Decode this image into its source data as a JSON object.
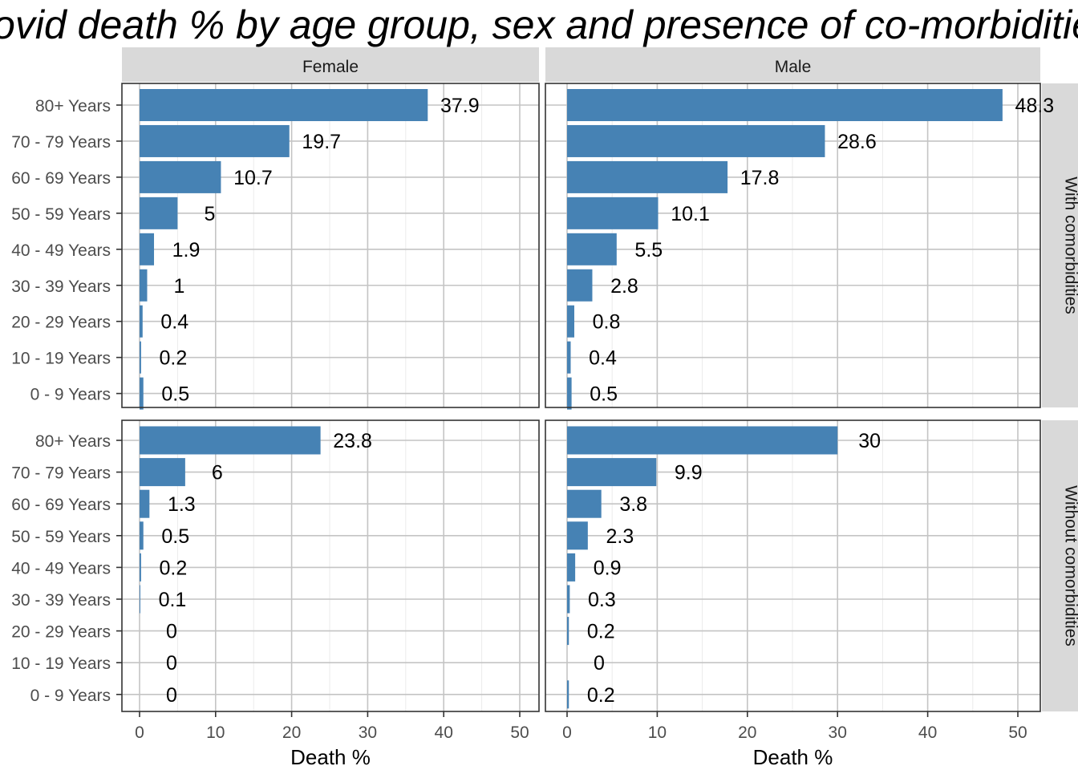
{
  "chart_data": {
    "type": "bar",
    "orientation": "horizontal",
    "title": "Covid death % by age group, sex and presence of co-morbidities",
    "xlabel": "Death %",
    "xlim": [
      0,
      50
    ],
    "xticks": [
      0,
      10,
      20,
      30,
      40,
      50
    ],
    "categories": [
      "80+ Years",
      "70 - 79 Years",
      "60 - 69 Years",
      "50 - 59 Years",
      "40 - 49 Years",
      "30 - 39 Years",
      "20 - 29 Years",
      "10 - 19 Years",
      "0 - 9 Years"
    ],
    "columns": [
      "Female",
      "Male"
    ],
    "rows": [
      "With comorbidities",
      "Without comorbidities"
    ],
    "bar_color": "#4682b4",
    "grid": true,
    "panels": [
      {
        "column": "Female",
        "row": "With comorbidities",
        "values": [
          37.9,
          19.7,
          10.7,
          5,
          1.9,
          1,
          0.4,
          0.2,
          0.5
        ],
        "labels": [
          "37.9",
          "19.7",
          "10.7",
          "5",
          "1.9",
          "1",
          "0.4",
          "0.2",
          "0.5"
        ]
      },
      {
        "column": "Male",
        "row": "With comorbidities",
        "values": [
          48.3,
          28.6,
          17.8,
          10.1,
          5.5,
          2.8,
          0.8,
          0.4,
          0.5
        ],
        "labels": [
          "48.3",
          "28.6",
          "17.8",
          "10.1",
          "5.5",
          "2.8",
          "0.8",
          "0.4",
          "0.5"
        ]
      },
      {
        "column": "Female",
        "row": "Without comorbidities",
        "values": [
          23.8,
          6,
          1.3,
          0.5,
          0.2,
          0.1,
          0,
          0,
          0
        ],
        "labels": [
          "23.8",
          "6",
          "1.3",
          "0.5",
          "0.2",
          "0.1",
          "0",
          "0",
          "0"
        ]
      },
      {
        "column": "Male",
        "row": "Without comorbidities",
        "values": [
          30,
          9.9,
          3.8,
          2.3,
          0.9,
          0.3,
          0.2,
          0,
          0.2
        ],
        "labels": [
          "30",
          "9.9",
          "3.8",
          "2.3",
          "0.9",
          "0.3",
          "0.2",
          "0",
          "0.2"
        ]
      }
    ]
  }
}
